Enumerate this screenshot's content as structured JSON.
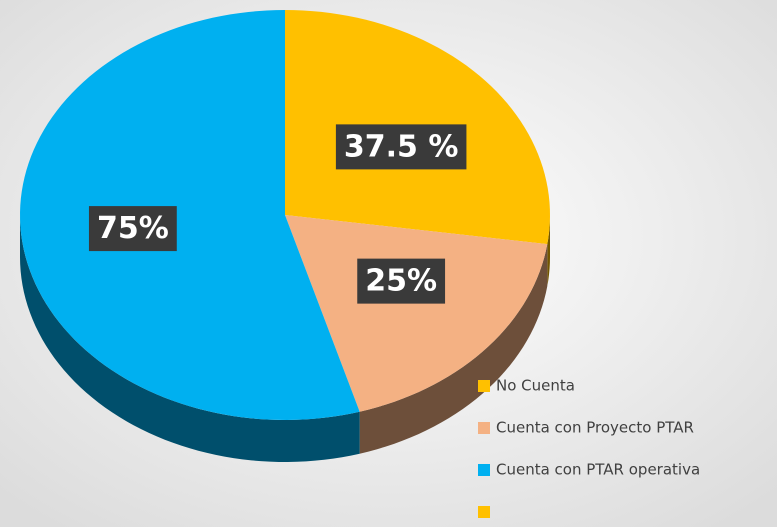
{
  "chart_data": {
    "type": "pie",
    "categories": [
      "No Cuenta",
      "Cuenta con Proyecto PTAR",
      "Cuenta con PTAR operativa",
      null
    ],
    "values": [
      37.5,
      25,
      75,
      null
    ],
    "value_labels": [
      "37.5 %",
      "25%",
      "75%",
      null
    ],
    "colors": [
      "#ffc000",
      "#f4b183",
      "#00b0f0",
      "#ffc000"
    ],
    "legend": "bottom-right"
  }
}
